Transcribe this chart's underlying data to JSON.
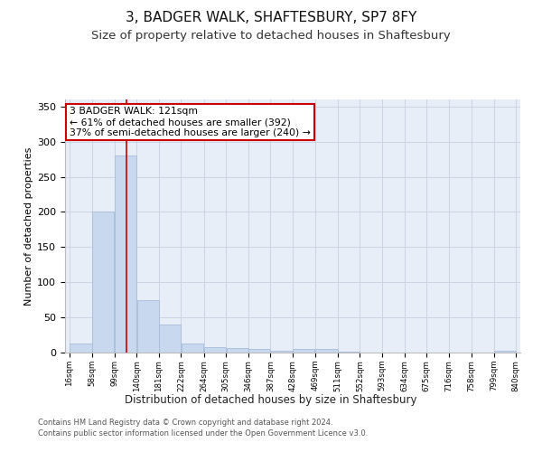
{
  "title": "3, BADGER WALK, SHAFTESBURY, SP7 8FY",
  "subtitle": "Size of property relative to detached houses in Shaftesbury",
  "xlabel": "Distribution of detached houses by size in Shaftesbury",
  "ylabel": "Number of detached properties",
  "footer_line1": "Contains HM Land Registry data © Crown copyright and database right 2024.",
  "footer_line2": "Contains public sector information licensed under the Open Government Licence v3.0.",
  "bar_edges": [
    16,
    58,
    99,
    140,
    181,
    222,
    264,
    305,
    346,
    387,
    428,
    469,
    511,
    552,
    593,
    634,
    675,
    716,
    758,
    799,
    840
  ],
  "bar_heights": [
    13,
    200,
    280,
    75,
    40,
    13,
    8,
    6,
    5,
    3,
    5,
    5,
    1,
    0,
    0,
    0,
    0,
    0,
    0,
    2
  ],
  "bar_color": "#c8d8ee",
  "bar_edge_color": "#a8bcd8",
  "redline_x": 121,
  "annotation_line1": "3 BADGER WALK: 121sqm",
  "annotation_line2": "← 61% of detached houses are smaller (392)",
  "annotation_line3": "37% of semi-detached houses are larger (240) →",
  "annotation_box_color": "#ffffff",
  "annotation_box_edge_color": "#cc0000",
  "redline_color": "#cc0000",
  "ylim": [
    0,
    360
  ],
  "yticks": [
    0,
    50,
    100,
    150,
    200,
    250,
    300,
    350
  ],
  "grid_color": "#ccd4e4",
  "bg_color": "#e8eef8",
  "title_fontsize": 11,
  "subtitle_fontsize": 9.5,
  "annotation_fontsize": 7.8,
  "xlabel_fontsize": 8.5,
  "ylabel_fontsize": 8,
  "footer_fontsize": 6
}
